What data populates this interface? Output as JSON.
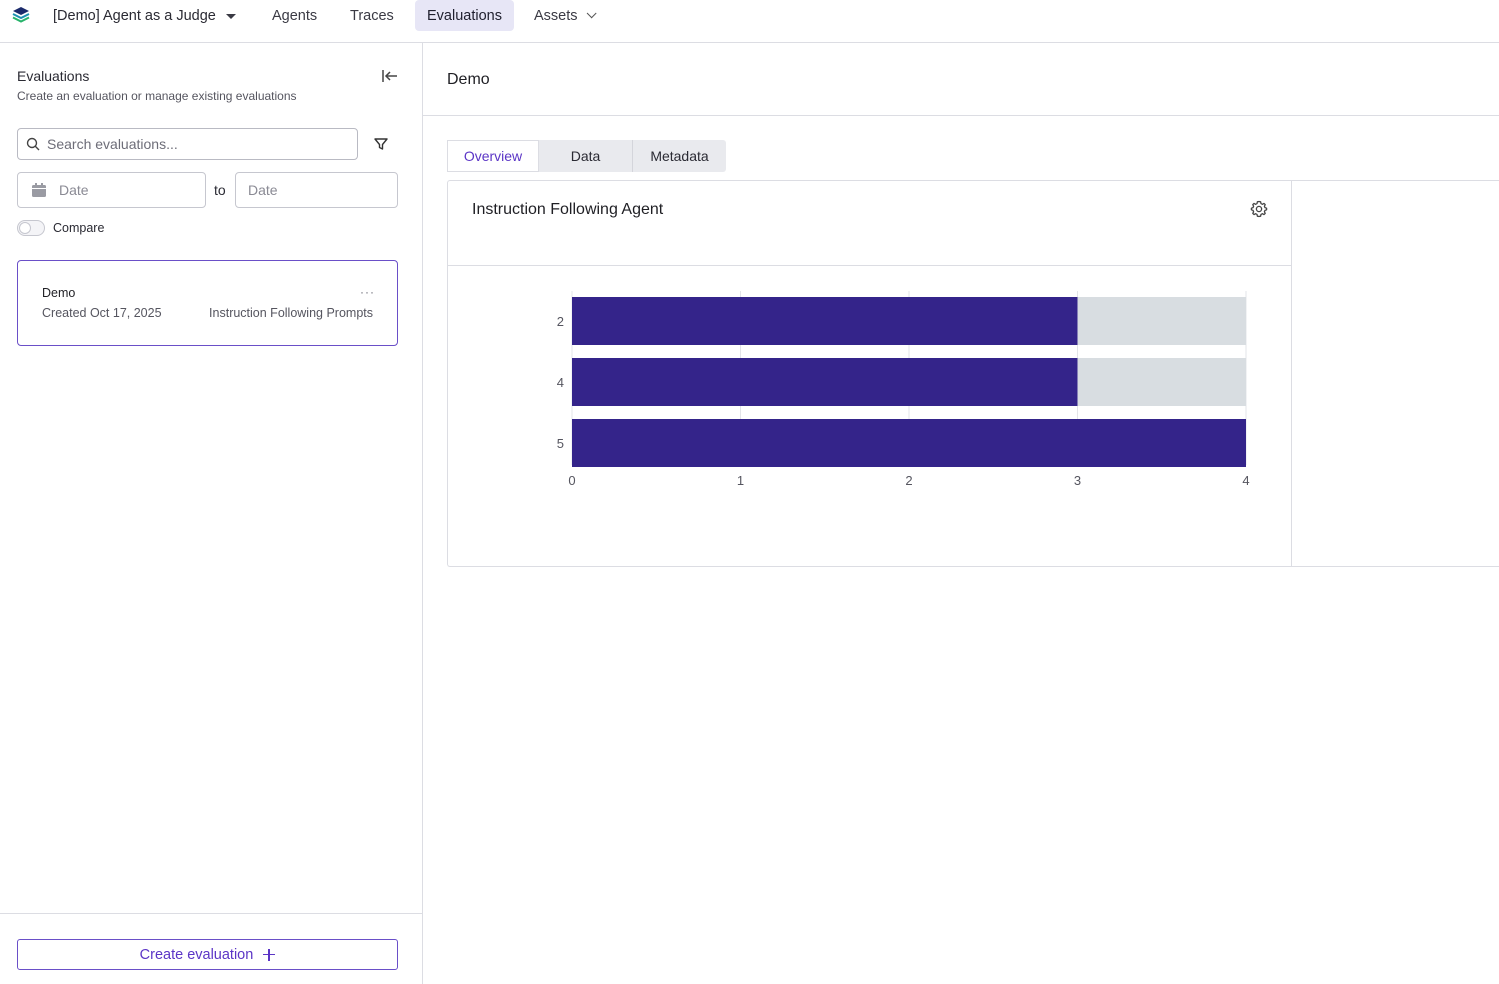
{
  "topbar": {
    "project": "[Demo] Agent as a Judge",
    "nav": [
      {
        "label": "Agents"
      },
      {
        "label": "Traces"
      },
      {
        "label": "Evaluations",
        "active": true
      },
      {
        "label": "Assets",
        "has_dropdown": true
      }
    ]
  },
  "sidebar": {
    "title": "Evaluations",
    "subtitle": "Create an evaluation or manage existing evaluations",
    "search": {
      "placeholder": "Search evaluations...",
      "value": ""
    },
    "date_from": {
      "placeholder": "Date",
      "value": ""
    },
    "date_to": {
      "placeholder": "Date",
      "value": ""
    },
    "to_label": "to",
    "compare_label": "Compare",
    "compare_on": false,
    "evaluations": [
      {
        "name": "Demo",
        "created": "Created Oct 17, 2025",
        "dataset": "Instruction Following Prompts",
        "selected": true
      }
    ],
    "more_label": "···",
    "create_button": "Create evaluation"
  },
  "main": {
    "title": "Demo",
    "tabs": [
      {
        "label": "Overview",
        "active": true
      },
      {
        "label": "Data"
      },
      {
        "label": "Metadata"
      }
    ],
    "panel_title": "Instruction Following Agent"
  },
  "colors": {
    "accent": "#5b35c6",
    "bar": "#34248a",
    "bar_remainder": "#d8dde1"
  },
  "chart_data": {
    "type": "bar",
    "orientation": "horizontal",
    "stacked": true,
    "categories": [
      "2",
      "4",
      "5"
    ],
    "series": [
      {
        "values": [
          3,
          3,
          4
        ],
        "color": "#34248a"
      },
      {
        "values": [
          1,
          1,
          0
        ],
        "color": "#d8dde1"
      }
    ],
    "xlim": [
      0,
      4
    ],
    "xticks": [
      "0",
      "1",
      "2",
      "3",
      "4"
    ],
    "grid": true
  }
}
